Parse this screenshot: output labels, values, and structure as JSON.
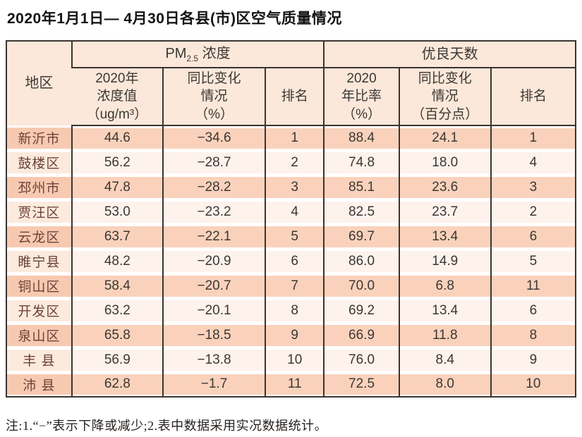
{
  "title": "2020年1月1日— 4月30日各县(市)区空气质量情况",
  "note": "注:1.“−”表示下降或减少;2.表中数据采用实况数据统计。",
  "colors": {
    "row_dark": "#fad2bc",
    "row_dark_first": "#f8c9b1",
    "row_light": "#fdf2ec",
    "row_light_first": "#fceade",
    "header_bg": "#fbe8da",
    "border": "#3b3430"
  },
  "table": {
    "col_region": "地区",
    "group_pm": {
      "prefix": "PM",
      "sub": "2.5",
      "suffix": " 浓度"
    },
    "group_good": "优良天数",
    "subheads": [
      "2020年\n浓度值\n（ug/m³）",
      "同比变化\n情况\n（%）",
      "排名",
      "2020\n年比率\n（%）",
      "同比变化\n情况\n（百分点）",
      "排名"
    ],
    "rows": [
      {
        "region": "新沂市",
        "pm": "44.6",
        "pm_change": "−34.6",
        "pm_rank": "1",
        "good": "88.4",
        "good_change": "24.1",
        "good_rank": "1"
      },
      {
        "region": "鼓楼区",
        "pm": "56.2",
        "pm_change": "−28.7",
        "pm_rank": "2",
        "good": "74.8",
        "good_change": "18.0",
        "good_rank": "4"
      },
      {
        "region": "邳州市",
        "pm": "47.8",
        "pm_change": "−28.2",
        "pm_rank": "3",
        "good": "85.1",
        "good_change": "23.6",
        "good_rank": "3"
      },
      {
        "region": "贾汪区",
        "pm": "53.0",
        "pm_change": "−23.2",
        "pm_rank": "4",
        "good": "82.5",
        "good_change": "23.7",
        "good_rank": "2"
      },
      {
        "region": "云龙区",
        "pm": "63.7",
        "pm_change": "−22.1",
        "pm_rank": "5",
        "good": "69.7",
        "good_change": "13.4",
        "good_rank": "6"
      },
      {
        "region": "睢宁县",
        "pm": "48.2",
        "pm_change": "−20.9",
        "pm_rank": "6",
        "good": "86.0",
        "good_change": "14.9",
        "good_rank": "5"
      },
      {
        "region": "铜山区",
        "pm": "58.4",
        "pm_change": "−20.7",
        "pm_rank": "7",
        "good": "70.0",
        "good_change": "6.8",
        "good_rank": "11"
      },
      {
        "region": "开发区",
        "pm": "63.2",
        "pm_change": "−20.1",
        "pm_rank": "8",
        "good": "69.2",
        "good_change": "13.4",
        "good_rank": "6"
      },
      {
        "region": "泉山区",
        "pm": "65.8",
        "pm_change": "−18.5",
        "pm_rank": "9",
        "good": "66.9",
        "good_change": "11.8",
        "good_rank": "8"
      },
      {
        "region": "丰 县",
        "pm": "56.9",
        "pm_change": "−13.8",
        "pm_rank": "10",
        "good": "76.0",
        "good_change": "8.4",
        "good_rank": "9"
      },
      {
        "region": "沛 县",
        "pm": "62.8",
        "pm_change": "−1.7",
        "pm_rank": "11",
        "good": "72.5",
        "good_change": "8.0",
        "good_rank": "10"
      }
    ]
  }
}
